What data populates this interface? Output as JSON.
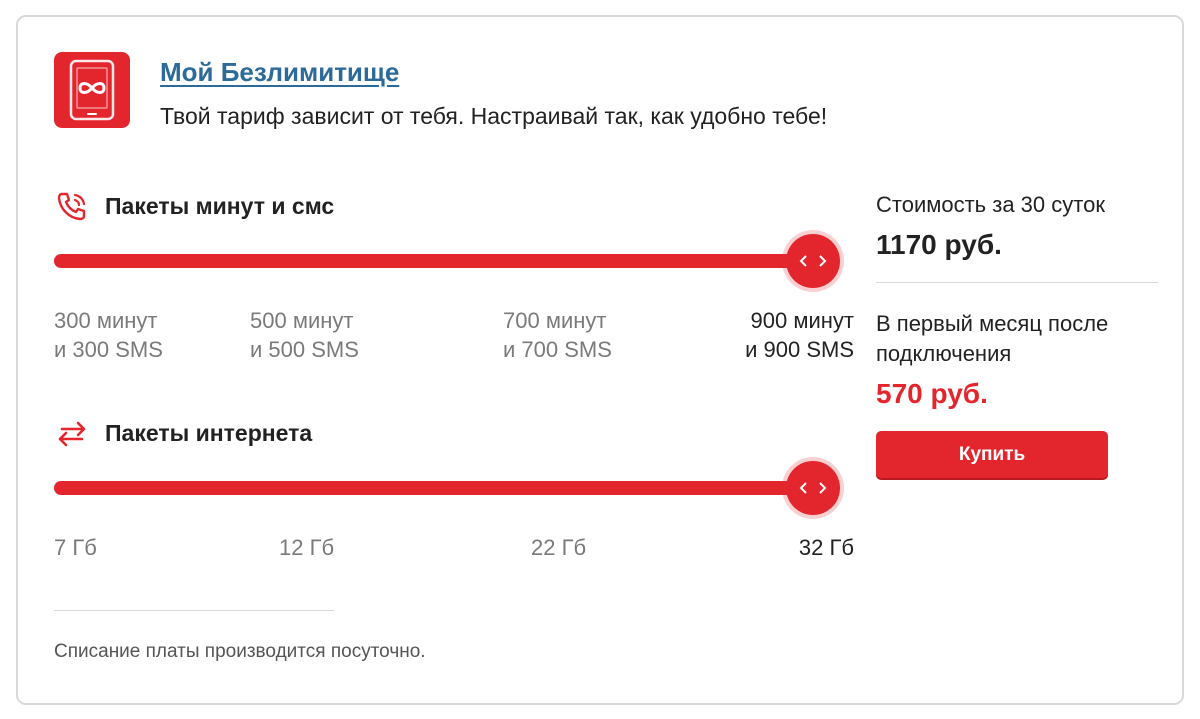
{
  "header": {
    "title": "Мой Безлимитище",
    "description": "Твой тариф зависит от тебя. Настраивай так, как удобно тебе!",
    "icon": "phone-infinity-icon"
  },
  "minutes_sms": {
    "title": "Пакеты минут и смс",
    "icon": "phone-call-icon",
    "options": [
      {
        "line1": "300 минут",
        "line2": "и 300 SMS"
      },
      {
        "line1": "500 минут",
        "line2": "и 500 SMS"
      },
      {
        "line1": "700 минут",
        "line2": "и 700 SMS"
      },
      {
        "line1": "900 минут",
        "line2": "и 900 SMS"
      }
    ],
    "selected_index": 3
  },
  "internet": {
    "title": "Пакеты интернета",
    "icon": "swap-arrows-icon",
    "options": [
      "7 Гб",
      "12 Гб",
      "22 Гб",
      "32 Гб"
    ],
    "selected_index": 3
  },
  "footnote": "Списание платы производится посуточно.",
  "pricing": {
    "cost_label": "Стоимость за 30 суток",
    "cost_value": "1170 руб.",
    "first_month_label_line1": "В первый месяц после",
    "first_month_label_line2": "подключения",
    "first_month_value": "570 руб.",
    "buy_label": "Купить"
  },
  "colors": {
    "accent": "#e3262d",
    "link": "#2c6a9a",
    "muted_text": "#7a7a7a",
    "border": "#d9d9d9"
  }
}
